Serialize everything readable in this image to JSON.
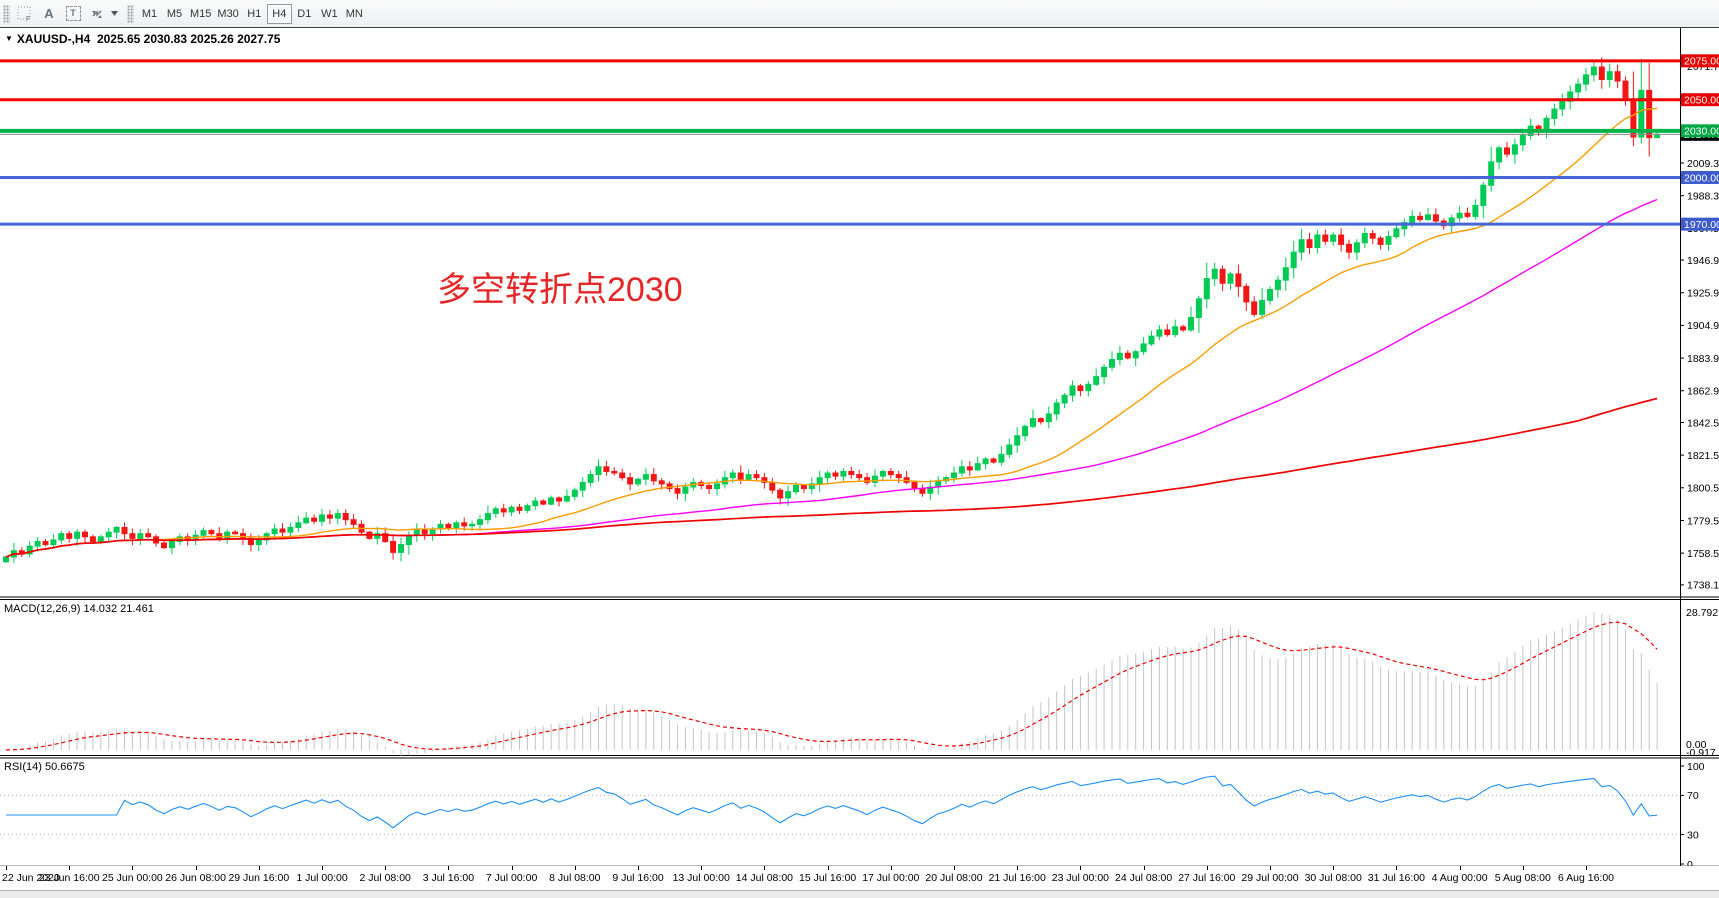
{
  "toolbar": {
    "tools": [
      {
        "name": "indicators-grid",
        "glyph": "F"
      },
      {
        "name": "text-label",
        "glyph": "A"
      },
      {
        "name": "text-box",
        "glyph": "T"
      },
      {
        "name": "arrows-tool",
        "glyph": "⇵"
      },
      {
        "name": "dropdown-caret",
        "glyph": "▼"
      }
    ],
    "timeframes": [
      "M1",
      "M5",
      "M15",
      "M30",
      "H1",
      "H4",
      "D1",
      "W1",
      "MN"
    ],
    "active_timeframe": "H4"
  },
  "chart": {
    "title_marker": "▼",
    "symbol_period": "XAUUSD-,H4",
    "ohlc_text": "2025.65 2030.83 2025.26 2027.75",
    "annotation": "多空转折点2030",
    "annotation_color": "#E62626"
  },
  "macd": {
    "name": "MACD(12,26,9)",
    "values": "14.032 21.461",
    "axis_max": "28.792",
    "axis_zero": "0.00",
    "axis_min": "-0.917"
  },
  "rsi": {
    "name": "RSI(14)",
    "value": "50.6675",
    "axis_labels": [
      "100",
      "70",
      "30",
      "0"
    ]
  },
  "chart_data": {
    "type": "candlestick",
    "symbol": "XAUUSD-",
    "timeframe": "H4",
    "ohlc_display": {
      "open": 2025.65,
      "high": 2030.83,
      "low": 2025.26,
      "close": 2027.75
    },
    "title": "多空转折点2030",
    "y_domain": [
      1730.3,
      2096.1
    ],
    "price_axis_ticks": [
      "2071.70",
      "2009.30",
      "1988.30",
      "1967.50",
      "1946.90",
      "1925.90",
      "1904.90",
      "1883.90",
      "1862.90",
      "1842.50",
      "1821.50",
      "1800.50",
      "1779.50",
      "1758.50",
      "1738.10"
    ],
    "hlines": [
      {
        "price": 2075.0,
        "label": "2075.00",
        "color": "#F00000",
        "width": 3,
        "badge": "#E80000"
      },
      {
        "price": 2050.0,
        "label": "2050.00",
        "color": "#F00000",
        "width": 3,
        "badge": "#E80000"
      },
      {
        "price": 2030.0,
        "label": "2030.00",
        "color": "#00B44A",
        "width": 4,
        "badge": "#00A844"
      },
      {
        "price": 2000.0,
        "label": "2000.00",
        "color": "#4565D8",
        "width": 3,
        "badge": "#3D5CCC"
      },
      {
        "price": 1970.0,
        "label": "1970.00",
        "color": "#4565D8",
        "width": 3,
        "badge": "#3D5CCC"
      }
    ],
    "current_price": {
      "price": 2027.75,
      "label": "2027.75",
      "line_color": "#8a8a8a",
      "badge": "#000000"
    },
    "up_color": "#00CC55",
    "down_color": "#F21616",
    "ma_lines": [
      {
        "name": "ma-fast",
        "period": 20,
        "color": "#FF9C00"
      },
      {
        "name": "ma-mid",
        "period": 60,
        "color": "#FF00FF"
      },
      {
        "name": "ma-slow",
        "period": 200,
        "color": "#F00000"
      }
    ],
    "macd_settings": {
      "fast": 12,
      "slow": 26,
      "signal": 9,
      "last_macd": 14.032,
      "last_signal": 21.461,
      "histogram_color": "#c4c4c4",
      "signal_color": "#F00000"
    },
    "rsi_settings": {
      "period": 14,
      "last_value": 50.6675,
      "line_color": "#1E90FF",
      "levels": [
        70,
        30
      ]
    },
    "x_labels": [
      "22 Jun 2020",
      "23 Jun 16:00",
      "25 Jun 00:00",
      "26 Jun 08:00",
      "29 Jun 16:00",
      "1 Jul 00:00",
      "2 Jul 08:00",
      "3 Jul 16:00",
      "7 Jul 00:00",
      "8 Jul 08:00",
      "9 Jul 16:00",
      "13 Jul 00:00",
      "14 Jul 08:00",
      "15 Jul 16:00",
      "17 Jul 00:00",
      "20 Jul 08:00",
      "21 Jul 16:00",
      "23 Jul 00:00",
      "24 Jul 08:00",
      "27 Jul 16:00",
      "29 Jul 00:00",
      "30 Jul 08:00",
      "31 Jul 16:00",
      "4 Aug 00:00",
      "5 Aug 08:00",
      "6 Aug 16:00"
    ],
    "candles_per_label": 8,
    "closes": [
      1756,
      1760,
      1758,
      1763,
      1766,
      1764,
      1767,
      1771,
      1768,
      1772,
      1769,
      1766,
      1769,
      1772,
      1775,
      1771,
      1768,
      1771,
      1769,
      1765,
      1762,
      1766,
      1769,
      1767,
      1770,
      1773,
      1771,
      1768,
      1772,
      1771,
      1768,
      1764,
      1767,
      1771,
      1774,
      1772,
      1775,
      1778,
      1781,
      1779,
      1783,
      1781,
      1784,
      1780,
      1777,
      1772,
      1768,
      1771,
      1766,
      1759,
      1764,
      1770,
      1774,
      1771,
      1774,
      1777,
      1775,
      1778,
      1776,
      1777,
      1780,
      1784,
      1787,
      1785,
      1788,
      1786,
      1789,
      1792,
      1790,
      1794,
      1792,
      1795,
      1799,
      1804,
      1809,
      1814,
      1811,
      1810,
      1807,
      1803,
      1806,
      1809,
      1805,
      1803,
      1800,
      1797,
      1801,
      1804,
      1802,
      1800,
      1803,
      1807,
      1810,
      1806,
      1809,
      1807,
      1804,
      1799,
      1794,
      1798,
      1802,
      1800,
      1803,
      1807,
      1810,
      1808,
      1811,
      1809,
      1807,
      1804,
      1808,
      1811,
      1809,
      1807,
      1804,
      1800,
      1797,
      1801,
      1805,
      1807,
      1810,
      1814,
      1812,
      1816,
      1819,
      1817,
      1822,
      1828,
      1834,
      1840,
      1845,
      1843,
      1848,
      1855,
      1860,
      1866,
      1863,
      1867,
      1872,
      1878,
      1883,
      1887,
      1884,
      1888,
      1893,
      1898,
      1902,
      1899,
      1904,
      1902,
      1910,
      1922,
      1935,
      1941,
      1932,
      1938,
      1930,
      1920,
      1912,
      1921,
      1928,
      1934,
      1942,
      1952,
      1960,
      1955,
      1963,
      1959,
      1963,
      1957,
      1952,
      1958,
      1964,
      1961,
      1957,
      1962,
      1967,
      1971,
      1975,
      1973,
      1976,
      1972,
      1969,
      1974,
      1977,
      1975,
      1982,
      1995,
      2010,
      2019,
      2015,
      2021,
      2027,
      2033,
      2030,
      2038,
      2044,
      2049,
      2055,
      2060,
      2066,
      2071,
      2063,
      2068,
      2062,
      2050,
      2026,
      2056,
      2025.65,
      2027.75
    ]
  }
}
